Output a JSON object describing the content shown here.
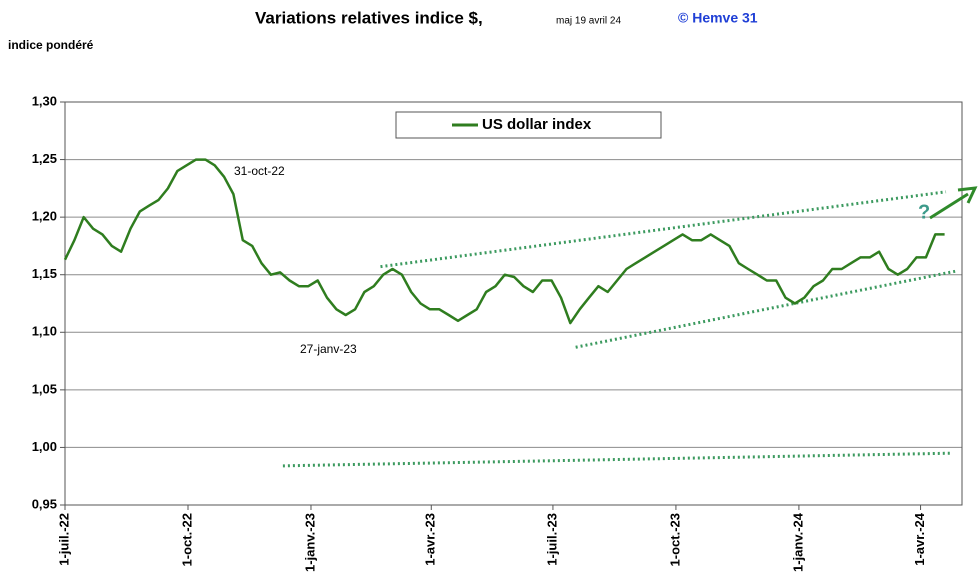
{
  "chart_data": {
    "type": "line",
    "title": "Variations relatives  indice $,",
    "subtitle": "maj  19 avril 24",
    "credit": "© Hemve 31",
    "y_label": "indice pondéré",
    "annotations": [
      "31-oct-22",
      "27-janv-23",
      "?"
    ],
    "xlim": [
      "2022-07-01",
      "2024-05-02"
    ],
    "xticks": [
      {
        "value": "2022-07-01",
        "label": "1-juil.-22"
      },
      {
        "value": "2022-10-01",
        "label": "1-oct.-22"
      },
      {
        "value": "2023-01-01",
        "label": "1-janv.-23"
      },
      {
        "value": "2023-04-01",
        "label": "1-avr.-23"
      },
      {
        "value": "2023-07-01",
        "label": "1-juil.-23"
      },
      {
        "value": "2023-10-01",
        "label": "1-oct.-23"
      },
      {
        "value": "2024-01-01",
        "label": "1-janv.-24"
      },
      {
        "value": "2024-04-01",
        "label": "1-avr.-24"
      }
    ],
    "ylim": [
      0.95,
      1.3
    ],
    "yticks": [
      {
        "value": 0.95,
        "label": "0,95"
      },
      {
        "value": 1.0,
        "label": "1,00"
      },
      {
        "value": 1.05,
        "label": "1,05"
      },
      {
        "value": 1.1,
        "label": "1,10"
      },
      {
        "value": 1.15,
        "label": "1,15"
      },
      {
        "value": 1.2,
        "label": "1,20"
      },
      {
        "value": 1.25,
        "label": "1,25"
      },
      {
        "value": 1.3,
        "label": "1,30"
      }
    ],
    "grid": true,
    "legend": "top",
    "x": [
      "2022-07-01",
      "2022-07-08",
      "2022-07-15",
      "2022-07-22",
      "2022-07-29",
      "2022-08-05",
      "2022-08-12",
      "2022-08-19",
      "2022-08-26",
      "2022-09-02",
      "2022-09-09",
      "2022-09-16",
      "2022-09-23",
      "2022-09-30",
      "2022-10-07",
      "2022-10-14",
      "2022-10-21",
      "2022-10-28",
      "2022-11-04",
      "2022-11-11",
      "2022-11-18",
      "2022-11-25",
      "2022-12-02",
      "2022-12-09",
      "2022-12-16",
      "2022-12-23",
      "2022-12-30",
      "2023-01-06",
      "2023-01-13",
      "2023-01-20",
      "2023-01-27",
      "2023-02-03",
      "2023-02-10",
      "2023-02-17",
      "2023-02-24",
      "2023-03-03",
      "2023-03-10",
      "2023-03-17",
      "2023-03-24",
      "2023-03-31",
      "2023-04-07",
      "2023-04-14",
      "2023-04-21",
      "2023-04-28",
      "2023-05-05",
      "2023-05-12",
      "2023-05-19",
      "2023-05-26",
      "2023-06-02",
      "2023-06-09",
      "2023-06-16",
      "2023-06-23",
      "2023-06-30",
      "2023-07-07",
      "2023-07-14",
      "2023-07-21",
      "2023-07-28",
      "2023-08-04",
      "2023-08-11",
      "2023-08-18",
      "2023-08-25",
      "2023-09-01",
      "2023-09-08",
      "2023-09-15",
      "2023-09-22",
      "2023-09-29",
      "2023-10-06",
      "2023-10-13",
      "2023-10-20",
      "2023-10-27",
      "2023-11-03",
      "2023-11-10",
      "2023-11-17",
      "2023-11-24",
      "2023-12-01",
      "2023-12-08",
      "2023-12-15",
      "2023-12-22",
      "2023-12-29",
      "2024-01-05",
      "2024-01-12",
      "2024-01-19",
      "2024-01-26",
      "2024-02-02",
      "2024-02-09",
      "2024-02-16",
      "2024-02-23",
      "2024-03-01",
      "2024-03-08",
      "2024-03-15",
      "2024-03-22",
      "2024-03-29",
      "2024-04-05",
      "2024-04-12",
      "2024-04-19"
    ],
    "series": [
      {
        "name": "US dollar index",
        "color": "#2f7d1f",
        "values": [
          1.163,
          1.18,
          1.2,
          1.19,
          1.185,
          1.175,
          1.17,
          1.19,
          1.205,
          1.21,
          1.215,
          1.225,
          1.24,
          1.245,
          1.25,
          1.25,
          1.245,
          1.235,
          1.22,
          1.18,
          1.175,
          1.16,
          1.15,
          1.152,
          1.145,
          1.14,
          1.14,
          1.145,
          1.13,
          1.12,
          1.115,
          1.12,
          1.135,
          1.14,
          1.15,
          1.155,
          1.15,
          1.135,
          1.125,
          1.12,
          1.12,
          1.115,
          1.11,
          1.115,
          1.12,
          1.135,
          1.14,
          1.15,
          1.148,
          1.14,
          1.135,
          1.145,
          1.145,
          1.13,
          1.108,
          1.12,
          1.13,
          1.14,
          1.135,
          1.145,
          1.155,
          1.16,
          1.165,
          1.17,
          1.175,
          1.18,
          1.185,
          1.18,
          1.18,
          1.185,
          1.18,
          1.175,
          1.16,
          1.155,
          1.15,
          1.145,
          1.145,
          1.13,
          1.125,
          1.13,
          1.14,
          1.145,
          1.155,
          1.155,
          1.16,
          1.165,
          1.165,
          1.17,
          1.155,
          1.15,
          1.155,
          1.165,
          1.165,
          1.185,
          1.185
        ]
      }
    ],
    "trendlines": [
      {
        "color": "#3c9a5f",
        "x": [
          "2023-02-22",
          "2024-04-20"
        ],
        "y": [
          1.157,
          1.222
        ]
      },
      {
        "color": "#3c9a5f",
        "x": [
          "2023-07-18",
          "2024-04-27"
        ],
        "y": [
          1.087,
          1.153
        ]
      },
      {
        "color": "#3c9a5f",
        "x": [
          "2022-12-11",
          "2024-04-24"
        ],
        "y": [
          0.984,
          0.995
        ]
      }
    ]
  }
}
